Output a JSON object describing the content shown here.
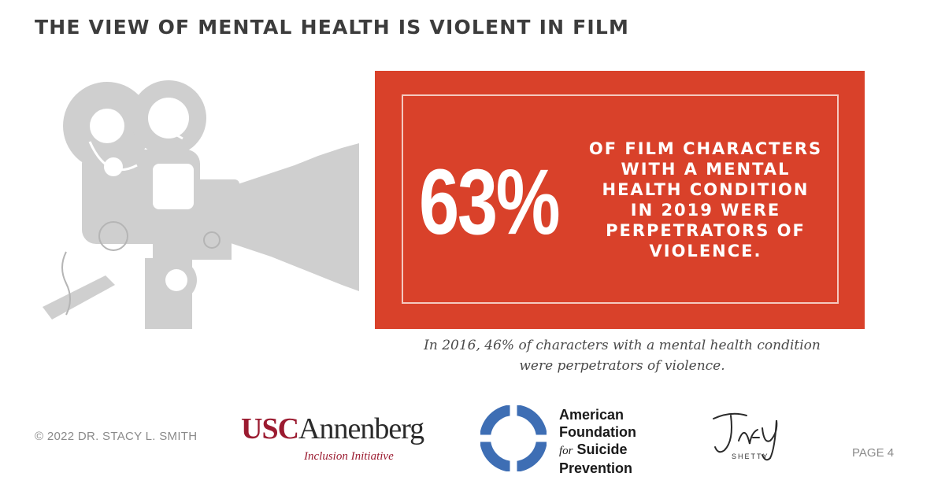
{
  "header": {
    "title": "THE VIEW OF MENTAL HEALTH IS VIOLENT IN FILM"
  },
  "stat": {
    "number": "63%",
    "description": "OF FILM CHARACTERS WITH A MENTAL HEALTH CONDITION IN 2019 WERE PERPETRATORS OF VIOLENCE."
  },
  "caption": "In 2016, 46% of characters with a mental health condition were perpetrators of violence.",
  "footer": {
    "copyright": "© 2022 DR. STACY L. SMITH",
    "page": "PAGE 4",
    "logos": {
      "usc_red": "USC",
      "usc_dark": "Annenberg",
      "usc_sub": "Inclusion Initiative",
      "afsp_line1": "American",
      "afsp_line2": "Foundation",
      "afsp_for": "for",
      "afsp_line3": "Suicide",
      "afsp_line4": "Prevention",
      "jay_script": "Jay",
      "jay_sub": "SHETTY"
    }
  },
  "colors": {
    "accent_red": "#d9412a",
    "usc_cardinal": "#9b1b30",
    "afsp_blue": "#3e6eb4",
    "illustration_gray": "#cfcfcf"
  },
  "icons": {
    "illustration": "film-projector-icon",
    "afsp": "life-ring-icon"
  }
}
